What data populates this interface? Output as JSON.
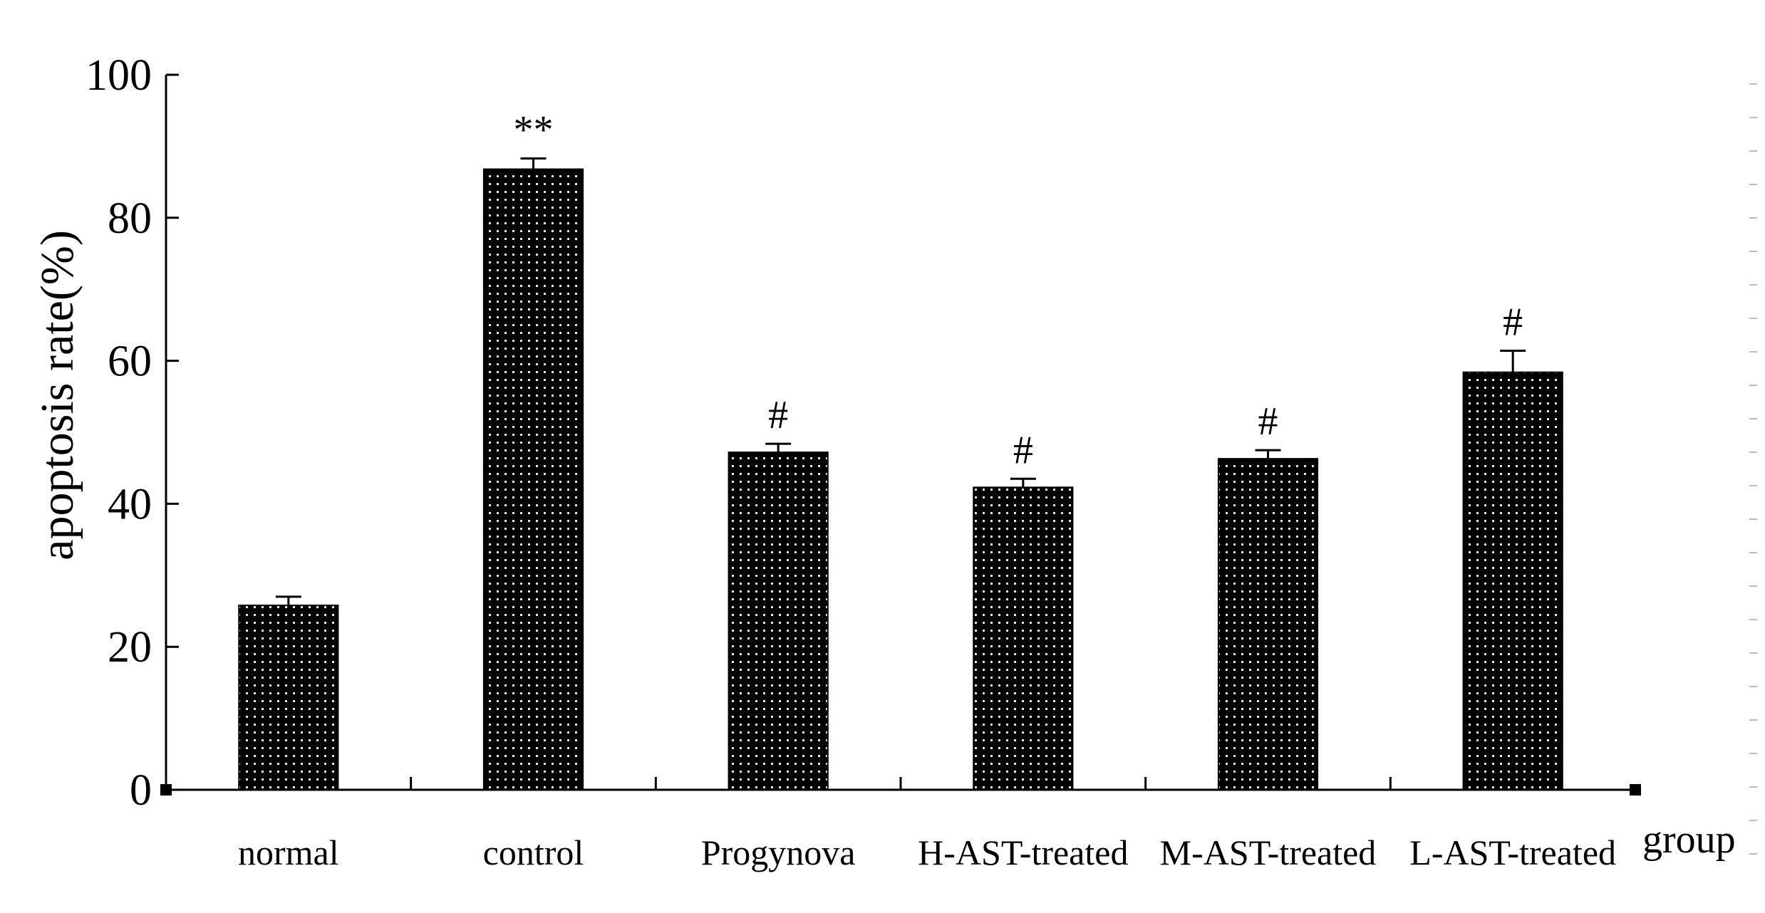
{
  "chart_data": {
    "type": "bar",
    "title": "",
    "xlabel": "group",
    "ylabel": "apoptosis rate(%)",
    "ylim": [
      0,
      100
    ],
    "yticks": [
      0,
      20,
      40,
      60,
      80,
      100
    ],
    "grid": false,
    "categories": [
      "normal",
      "control",
      "Progynova",
      "H-AST-treated",
      "M-AST-treated",
      "L-AST-treated"
    ],
    "values": [
      25.8,
      86.8,
      47.2,
      42.3,
      46.3,
      58.4
    ],
    "errors": [
      1.2,
      1.5,
      1.2,
      1.2,
      1.2,
      3.0
    ],
    "annotations": [
      "",
      "**",
      "#",
      "#",
      "#",
      "#"
    ],
    "bar_color": "#000000",
    "dot_color": "#ffffff"
  }
}
